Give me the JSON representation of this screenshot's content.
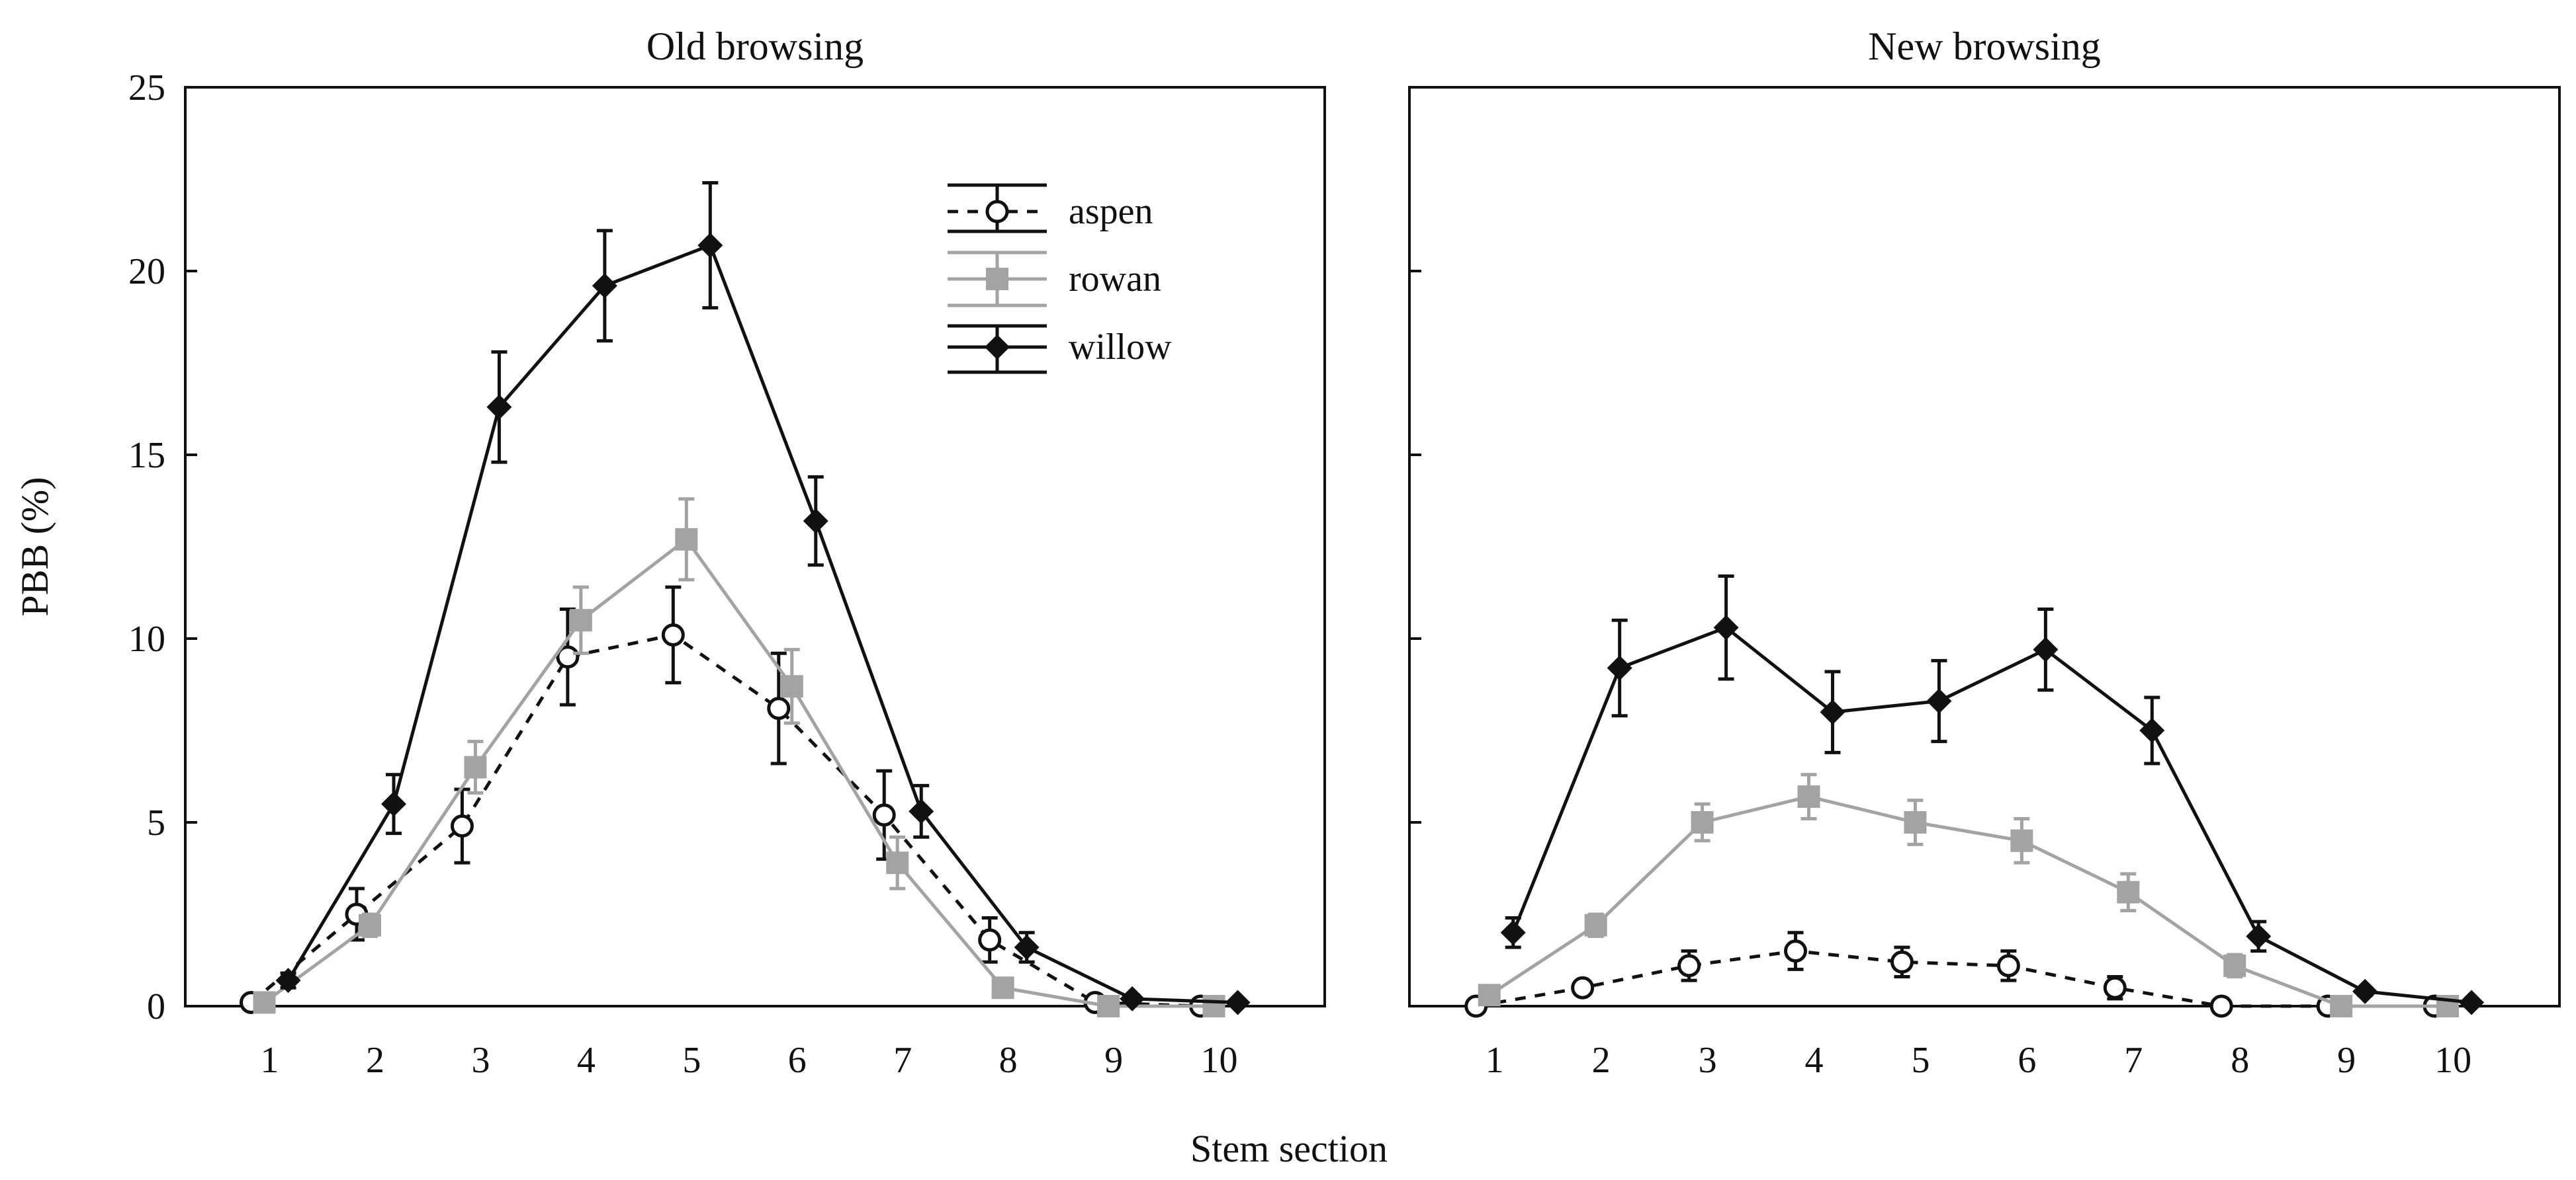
{
  "chart_data": [
    {
      "type": "line",
      "title": "Old browsing",
      "xlabel": "Stem section",
      "ylabel": "PBB (%)",
      "x": [
        1,
        2,
        3,
        4,
        5,
        6,
        7,
        8,
        9,
        10
      ],
      "xticks": [
        "1",
        "2",
        "3",
        "4",
        "5",
        "6",
        "7",
        "8",
        "9",
        "10"
      ],
      "yticks": [
        "0",
        "5",
        "10",
        "15",
        "20",
        "25"
      ],
      "ylim": [
        0,
        25
      ],
      "xlim": [
        0.2,
        11
      ],
      "series": [
        {
          "name": "aspen",
          "values": [
            0.1,
            2.5,
            4.9,
            9.5,
            10.1,
            8.1,
            5.2,
            1.8,
            0.1,
            0.0
          ],
          "errors": [
            0.15,
            0.7,
            1.0,
            1.3,
            1.3,
            1.5,
            1.2,
            0.6,
            0.1,
            0.05
          ],
          "color": "#111111",
          "dash": true,
          "marker": "open-circle"
        },
        {
          "name": "rowan",
          "values": [
            0.1,
            2.2,
            6.5,
            10.5,
            12.7,
            8.7,
            3.9,
            0.5,
            0.0,
            0.0
          ],
          "errors": [
            0.1,
            0.3,
            0.7,
            0.9,
            1.1,
            1.0,
            0.7,
            0.2,
            0.05,
            0.05
          ],
          "color": "#a3a3a3",
          "dash": false,
          "marker": "square"
        },
        {
          "name": "willow",
          "values": [
            0.7,
            5.5,
            16.3,
            19.6,
            20.7,
            13.2,
            5.3,
            1.6,
            0.2,
            0.1
          ],
          "errors": [
            0.2,
            0.8,
            1.5,
            1.5,
            1.7,
            1.2,
            0.7,
            0.4,
            0.1,
            0.05
          ],
          "color": "#111111",
          "dash": false,
          "marker": "diamond"
        }
      ],
      "legend": {
        "position": "top-center",
        "entries": [
          "aspen",
          "rowan",
          "willow"
        ]
      }
    },
    {
      "type": "line",
      "title": "New browsing",
      "xlabel": "Stem section",
      "ylabel": "",
      "x": [
        1,
        2,
        3,
        4,
        5,
        6,
        7,
        8,
        9,
        10
      ],
      "xticks": [
        "1",
        "2",
        "3",
        "4",
        "5",
        "6",
        "7",
        "8",
        "9",
        "10"
      ],
      "ylim": [
        0,
        25
      ],
      "xlim": [
        0.2,
        11
      ],
      "series": [
        {
          "name": "aspen",
          "values": [
            0.0,
            0.5,
            1.1,
            1.5,
            1.2,
            1.1,
            0.5,
            0.0,
            0.0,
            0.0
          ],
          "errors": [
            0.05,
            0.1,
            0.4,
            0.5,
            0.4,
            0.4,
            0.3,
            0.05,
            0.05,
            0.05
          ],
          "color": "#111111",
          "dash": true,
          "marker": "open-circle"
        },
        {
          "name": "rowan",
          "values": [
            0.3,
            2.2,
            5.0,
            5.7,
            5.0,
            4.5,
            3.1,
            1.1,
            0.0,
            0.0
          ],
          "errors": [
            0.1,
            0.3,
            0.5,
            0.6,
            0.6,
            0.6,
            0.5,
            0.3,
            0.05,
            0.05
          ],
          "color": "#a3a3a3",
          "dash": false,
          "marker": "square"
        },
        {
          "name": "willow",
          "values": [
            2.0,
            9.2,
            10.3,
            8.0,
            8.3,
            9.7,
            7.5,
            1.9,
            0.4,
            0.1
          ],
          "errors": [
            0.4,
            1.3,
            1.4,
            1.1,
            1.1,
            1.1,
            0.9,
            0.4,
            0.1,
            0.05
          ],
          "color": "#111111",
          "dash": false,
          "marker": "diamond"
        }
      ]
    }
  ]
}
